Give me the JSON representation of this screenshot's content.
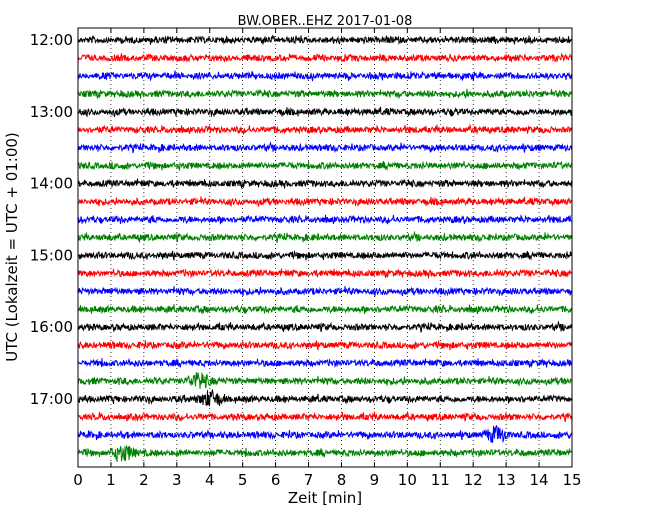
{
  "chart_data": {
    "type": "line",
    "title": "BW.OBER..EHZ 2017-01-08",
    "xlabel": "Zeit  [min]",
    "ylabel": "UTC (Lokalzeit = UTC + 01:00)",
    "xlim": [
      0,
      15
    ],
    "x_ticks": [
      "0",
      "1",
      "2",
      "3",
      "4",
      "5",
      "6",
      "7",
      "8",
      "9",
      "10",
      "11",
      "12",
      "13",
      "14",
      "15"
    ],
    "y_ticks": [
      "12:00",
      "13:00",
      "14:00",
      "15:00",
      "16:00",
      "17:00"
    ],
    "grid": "vertical dotted lines at each minute",
    "trace_interval_min": 15,
    "trace_start": "12:00",
    "trace_count": 24,
    "trace_colors": [
      "#000000",
      "#ff0000",
      "#0000ff",
      "#008000"
    ],
    "notable_events": [
      {
        "trace_start": "16:45",
        "minute": 3.7
      },
      {
        "trace_start": "17:00",
        "minute": 4.0
      },
      {
        "trace_start": "17:30",
        "minute": 12.7
      },
      {
        "trace_start": "17:45",
        "minute": 1.4
      }
    ]
  }
}
